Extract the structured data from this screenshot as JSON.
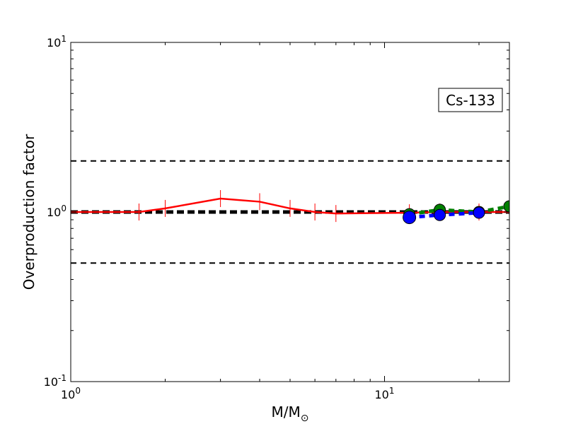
{
  "chart_data": {
    "type": "line",
    "title": "",
    "xlabel": "M/M",
    "xlabel_sub": "⊙",
    "ylabel": "Overproduction factor",
    "xscale": "log",
    "yscale": "log",
    "xlim": [
      1,
      25
    ],
    "ylim": [
      0.1,
      10
    ],
    "x_ticks": [
      {
        "value": 1,
        "base": "10",
        "exp": "0"
      },
      {
        "value": 10,
        "base": "10",
        "exp": "1"
      }
    ],
    "y_ticks": [
      {
        "value": 0.1,
        "base": "10",
        "exp": "-1"
      },
      {
        "value": 1,
        "base": "10",
        "exp": "0"
      },
      {
        "value": 10,
        "base": "10",
        "exp": "1"
      }
    ],
    "annotation": "Cs-133",
    "reference_lines": [
      {
        "y": 2.0,
        "style": "dashed",
        "color": "#000000",
        "width": 2
      },
      {
        "y": 1.0,
        "style": "dashed",
        "color": "#000000",
        "width": 5
      },
      {
        "y": 0.5,
        "style": "dashed",
        "color": "#000000",
        "width": 2
      }
    ],
    "series": [
      {
        "color": "#ff0000",
        "style": "solid",
        "marker": "vline",
        "x": [
          1.0,
          1.65,
          2.0,
          3.0,
          4.0,
          5.0,
          6.0,
          7.0,
          12.0,
          15.0,
          20.0,
          25.0
        ],
        "y": [
          1.0,
          1.0,
          1.05,
          1.2,
          1.15,
          1.05,
          1.0,
          0.98,
          0.99,
          1.0,
          1.0,
          1.0
        ]
      },
      {
        "color": "#008000",
        "style": "dashed",
        "marker": "circle",
        "x": [
          12.0,
          15.0,
          20.0,
          25.0
        ],
        "y": [
          0.97,
          1.03,
          1.0,
          1.08
        ]
      },
      {
        "color": "#0000ff",
        "style": "dashed",
        "marker": "circle",
        "x": [
          12.0,
          15.0,
          20.0
        ],
        "y": [
          0.93,
          0.96,
          0.99
        ]
      }
    ]
  }
}
